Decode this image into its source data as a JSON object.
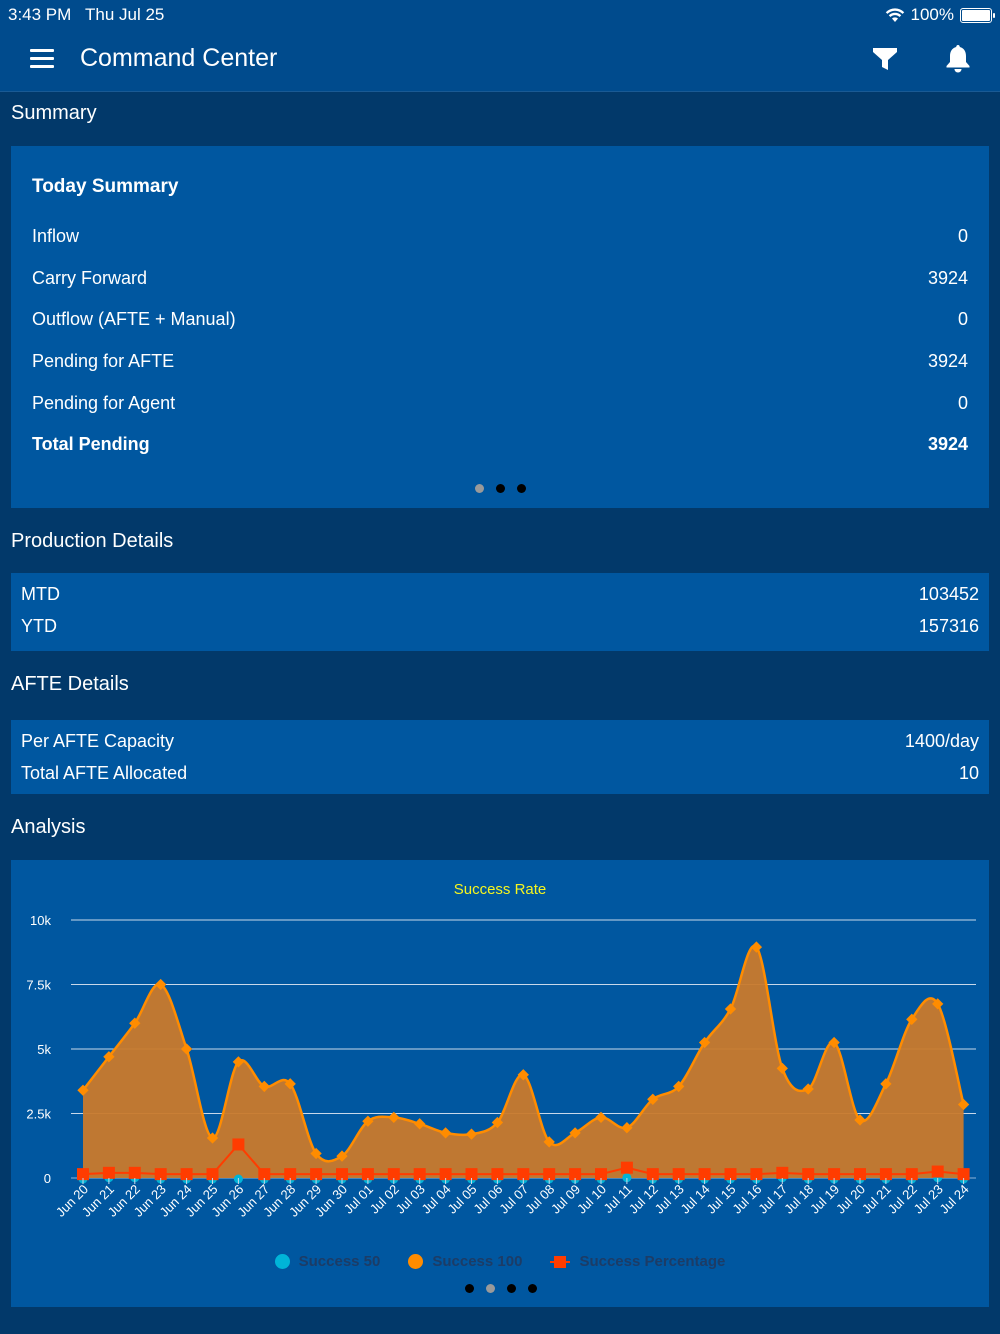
{
  "status_bar": {
    "time": "3:43 PM",
    "date": "Thu Jul 25",
    "battery": "100%"
  },
  "nav": {
    "title": "Command Center",
    "menu_icon": "hamburger-menu-icon",
    "filter_icon": "filter-icon",
    "bell_icon": "bell-icon"
  },
  "sections": {
    "summary": "Summary",
    "production": "Production Details",
    "afte": "AFTE Details",
    "analysis": "Analysis"
  },
  "today_summary": {
    "heading": "Today Summary",
    "rows": [
      {
        "label": "Inflow",
        "value": "0"
      },
      {
        "label": "Carry Forward",
        "value": "3924"
      },
      {
        "label": "Outflow (AFTE + Manual)",
        "value": "0"
      },
      {
        "label": "Pending for AFTE",
        "value": "3924"
      },
      {
        "label": "Pending for Agent",
        "value": "0"
      },
      {
        "label": "Total Pending",
        "value": "3924"
      }
    ],
    "pager": {
      "count": 3,
      "active": 0
    }
  },
  "production_details": {
    "rows": [
      {
        "label": "MTD",
        "value": "103452"
      },
      {
        "label": "YTD",
        "value": "157316"
      }
    ]
  },
  "afte_details": {
    "rows": [
      {
        "label": "Per AFTE Capacity",
        "value": "1400/day"
      },
      {
        "label": "Total AFTE Allocated",
        "value": "10"
      }
    ]
  },
  "colors": {
    "success50": "#00b4d8",
    "success100": "#ff8c00",
    "success100_fill": "#c97a2c",
    "success_percentage": "#ff3c00",
    "title": "#f5f51f"
  },
  "chart_pager": {
    "count": 4,
    "active": 1
  },
  "chart_data": {
    "type": "area",
    "title": "Success Rate",
    "xlabel": "",
    "ylabel": "",
    "ylim": [
      0,
      10000
    ],
    "yticks": [
      "0",
      "2.5k",
      "5k",
      "7.5k",
      "10k"
    ],
    "ytick_values": [
      0,
      2500,
      5000,
      7500,
      10000
    ],
    "grid": true,
    "legend_position": "bottom",
    "categories": [
      "Jun 20",
      "Jun 21",
      "Jun 22",
      "Jun 23",
      "Jun 24",
      "Jun 25",
      "Jun 26",
      "Jun 27",
      "Jun 28",
      "Jun 29",
      "Jun 30",
      "Jul 01",
      "Jul 02",
      "Jul 03",
      "Jul 04",
      "Jul 05",
      "Jul 06",
      "Jul 07",
      "Jul 08",
      "Jul 09",
      "Jul 10",
      "Jul 11",
      "Jul 12",
      "Jul 13",
      "Jul 14",
      "Jul 15",
      "Jul 16",
      "Jul 17",
      "Jul 18",
      "Jul 19",
      "Jul 20",
      "Jul 21",
      "Jul 22",
      "Jul 23",
      "Jul 24"
    ],
    "series": [
      {
        "name": "Success 50",
        "type": "scatter",
        "values": [
          0,
          50,
          50,
          0,
          0,
          0,
          0,
          0,
          0,
          0,
          0,
          0,
          0,
          0,
          0,
          0,
          0,
          0,
          0,
          0,
          0,
          50,
          0,
          0,
          0,
          0,
          0,
          50,
          0,
          0,
          0,
          0,
          0,
          50,
          0
        ]
      },
      {
        "name": "Success 100",
        "type": "area",
        "values": [
          3400,
          4700,
          6000,
          7500,
          5000,
          1550,
          4500,
          3550,
          3650,
          950,
          850,
          2200,
          2350,
          2100,
          1750,
          1700,
          2150,
          4000,
          1400,
          1750,
          2350,
          1950,
          3050,
          3550,
          5250,
          6550,
          8950,
          4250,
          3450,
          5250,
          2250,
          3650,
          6150,
          6750,
          2850
        ]
      },
      {
        "name": "Success Percentage",
        "type": "line",
        "values": [
          150,
          200,
          200,
          150,
          150,
          150,
          1300,
          150,
          150,
          150,
          150,
          150,
          150,
          150,
          150,
          150,
          150,
          150,
          150,
          150,
          150,
          400,
          150,
          150,
          150,
          150,
          150,
          200,
          150,
          150,
          150,
          150,
          150,
          250,
          150
        ]
      }
    ]
  }
}
